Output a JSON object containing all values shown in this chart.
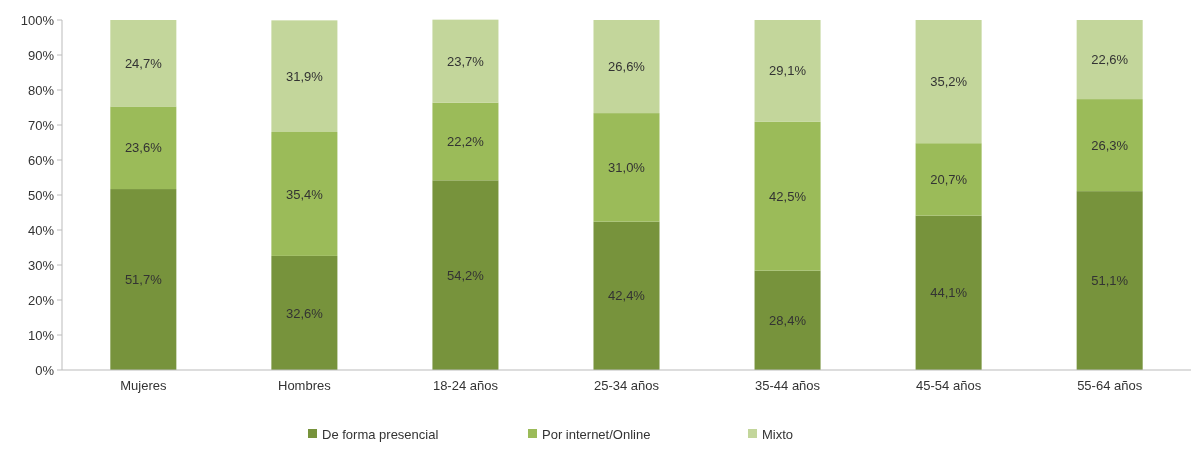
{
  "chart_data": {
    "type": "bar",
    "stacked": true,
    "categories": [
      "Mujeres",
      "Hombres",
      "18-24 años",
      "25-34 años",
      "35-44 años",
      "45-54 años",
      "55-64 años"
    ],
    "series": [
      {
        "name": "De forma presencial",
        "color": "#77933c",
        "values": [
          51.7,
          32.6,
          54.2,
          42.4,
          28.4,
          44.1,
          51.1
        ],
        "value_labels": [
          "51,7%",
          "32,6%",
          "54,2%",
          "42,4%",
          "28,4%",
          "44,1%",
          "51,1%"
        ]
      },
      {
        "name": "Por internet/Online",
        "color": "#9bbb59",
        "values": [
          23.6,
          35.4,
          22.2,
          31.0,
          42.5,
          20.7,
          26.3
        ],
        "value_labels": [
          "23,6%",
          "35,4%",
          "22,2%",
          "31,0%",
          "42,5%",
          "20,7%",
          "26,3%"
        ]
      },
      {
        "name": "Mixto",
        "color": "#c3d69b",
        "values": [
          24.7,
          31.9,
          23.7,
          26.6,
          29.1,
          35.2,
          22.6
        ],
        "value_labels": [
          "24,7%",
          "31,9%",
          "23,7%",
          "26,6%",
          "29,1%",
          "35,2%",
          "22,6%"
        ]
      }
    ],
    "ylim": [
      0,
      100
    ],
    "yticks": [
      {
        "value": 0,
        "label": "0%"
      },
      {
        "value": 10,
        "label": "10%"
      },
      {
        "value": 20,
        "label": "20%"
      },
      {
        "value": 30,
        "label": "30%"
      },
      {
        "value": 40,
        "label": "40%"
      },
      {
        "value": 50,
        "label": "50%"
      },
      {
        "value": 60,
        "label": "60%"
      },
      {
        "value": 70,
        "label": "70%"
      },
      {
        "value": 80,
        "label": "80%"
      },
      {
        "value": 90,
        "label": "90%"
      },
      {
        "value": 100,
        "label": "100%"
      }
    ],
    "grid": false,
    "legend": "bottom"
  }
}
